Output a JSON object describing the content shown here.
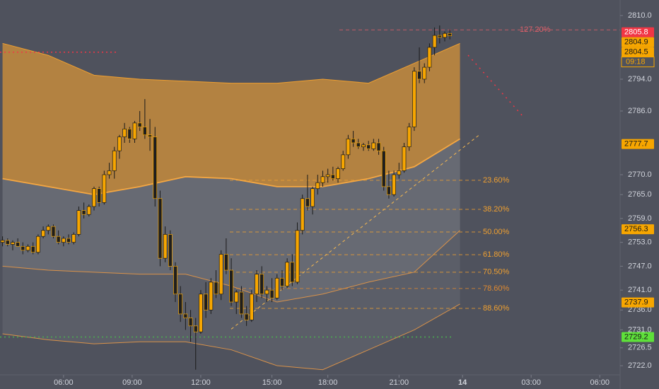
{
  "chart_data": {
    "type": "candlestick",
    "xlim": [
      -0.5,
      121.5
    ],
    "ylim": [
      2719.7,
      2813.9
    ],
    "xticks": [
      {
        "value": 12,
        "label": "06:00"
      },
      {
        "value": 25.5,
        "label": "09:00"
      },
      {
        "value": 39,
        "label": "12:00"
      },
      {
        "value": 53,
        "label": "15:00"
      },
      {
        "value": 64,
        "label": "18:00"
      },
      {
        "value": 78,
        "label": "21:00"
      },
      {
        "value": 90.5,
        "label": "14"
      },
      {
        "value": 104,
        "label": "03:00"
      },
      {
        "value": 117.5,
        "label": "06:00"
      }
    ],
    "yticks": [
      {
        "value": 2810,
        "label": "2810.0"
      },
      {
        "value": 2794,
        "label": "2794.0"
      },
      {
        "value": 2786,
        "label": "2786.0"
      },
      {
        "value": 2770,
        "label": "2770.0"
      },
      {
        "value": 2765,
        "label": "2765.0"
      },
      {
        "value": 2759,
        "label": "2759.0"
      },
      {
        "value": 2753,
        "label": "2753.0"
      },
      {
        "value": 2747,
        "label": "2747.0"
      },
      {
        "value": 2741,
        "label": "2741.0"
      },
      {
        "value": 2736,
        "label": "2736.0"
      },
      {
        "value": 2731,
        "label": "2731.0"
      },
      2726.5,
      {
        "value": 2722,
        "label": "2722.0"
      }
    ],
    "up_color": "#f7a600",
    "down_color": "#1e1e1e",
    "open": [
      2753,
      2753.5,
      2752.5,
      2753,
      2752,
      2751,
      2752,
      2750.5,
      2754.5,
      2756,
      2757,
      2754.5,
      2753,
      2754,
      2753,
      2755,
      2761,
      2760,
      2762,
      2766.5,
      2763,
      2770,
      2771,
      2776,
      2779.5,
      2781.5,
      2779,
      2783,
      2782,
      2780,
      2779.5,
      2764,
      2749,
      2755,
      2747,
      2740,
      2735,
      2734,
      2732,
      2730.5,
      2740,
      2736,
      2743,
      2740,
      2750,
      2746,
      2738,
      2740.5,
      2735,
      2733.5,
      2740,
      2745,
      2740,
      2741,
      2739,
      2744,
      2742,
      2748,
      2743,
      2756,
      2764,
      2762,
      2766.5,
      2768,
      2769.5,
      2770,
      2769,
      2771.5,
      2775,
      2779,
      2778,
      2777,
      2777.5,
      2776.5,
      2778,
      2776,
      2767,
      2765,
      2770,
      2771,
      2777,
      2782,
      2796,
      2794,
      2797,
      2802,
      2805,
      2804.5,
      2805.5
    ],
    "high": [
      2754.5,
      2754,
      2753.5,
      2754,
      2753,
      2752.5,
      2753,
      2755,
      2757,
      2757.5,
      2757.5,
      2756,
      2754.5,
      2755,
      2755.5,
      2762,
      2763,
      2762.5,
      2767,
      2767,
      2771,
      2773,
      2777,
      2780,
      2783,
      2782,
      2783.5,
      2786,
      2789,
      2784,
      2782,
      2766,
      2757,
      2756,
      2748,
      2742,
      2738,
      2736,
      2734,
      2741,
      2743,
      2744,
      2746,
      2751,
      2754,
      2749,
      2741,
      2742,
      2737,
      2741,
      2746,
      2747,
      2742,
      2744,
      2745,
      2746,
      2749,
      2750,
      2758,
      2765,
      2770,
      2767,
      2770,
      2771,
      2771.5,
      2772,
      2772,
      2776,
      2780,
      2781,
      2779,
      2778,
      2778.5,
      2779,
      2779,
      2777,
      2771,
      2771,
      2773,
      2778,
      2783,
      2797,
      2802,
      2798,
      2803,
      2807,
      2807.5,
      2806,
      2806.5
    ],
    "low": [
      2752,
      2752,
      2751,
      2752,
      2750,
      2750.5,
      2750,
      2750,
      2754,
      2755,
      2754,
      2752.5,
      2752,
      2752.5,
      2752.5,
      2754.5,
      2759,
      2759.5,
      2761,
      2762,
      2762.5,
      2769,
      2769,
      2774,
      2778,
      2778,
      2778,
      2781,
      2779,
      2776,
      2762,
      2747,
      2748,
      2746,
      2738,
      2733,
      2731,
      2728,
      2721,
      2730,
      2734,
      2735,
      2739,
      2738.5,
      2745,
      2737,
      2735,
      2734,
      2732,
      2733,
      2738,
      2739,
      2738,
      2738,
      2738.5,
      2741,
      2741.5,
      2742,
      2742.5,
      2755,
      2761,
      2760,
      2765,
      2767,
      2768,
      2768.5,
      2768,
      2771,
      2774,
      2777,
      2776.5,
      2776,
      2776,
      2776,
      2775,
      2766,
      2764,
      2764.5,
      2769,
      2770.5,
      2776,
      2781,
      2793,
      2793,
      2796,
      2800,
      2803,
      2803.5,
      2804
    ],
    "close": [
      2753.5,
      2752.5,
      2753,
      2752,
      2751,
      2752,
      2750.5,
      2754.5,
      2756,
      2757,
      2754.5,
      2753,
      2754,
      2753,
      2755,
      2761,
      2760,
      2762,
      2766.5,
      2763,
      2770,
      2771,
      2776,
      2779.5,
      2781.5,
      2779,
      2783,
      2782,
      2780,
      2779.5,
      2764,
      2749,
      2755,
      2747,
      2740,
      2735,
      2734,
      2732,
      2730.5,
      2740,
      2736,
      2743,
      2740,
      2750,
      2746,
      2738,
      2740.5,
      2735,
      2733.5,
      2740,
      2745,
      2740,
      2741,
      2739,
      2744,
      2742,
      2748,
      2743,
      2756,
      2764,
      2762,
      2766.5,
      2768,
      2769.5,
      2770,
      2769,
      2771.5,
      2775,
      2779,
      2778,
      2777,
      2777.5,
      2776.5,
      2778,
      2776,
      2767,
      2765,
      2770,
      2771,
      2777,
      2782,
      2796,
      2794,
      2797,
      2802,
      2805,
      2804.5,
      2805.5,
      2804.9
    ],
    "band_x": [
      0,
      9,
      18,
      27,
      36,
      45,
      54,
      63,
      72,
      81,
      90
    ],
    "bands": [
      {
        "color": "#f0a030",
        "values": [
          2803,
          2800,
          2795,
          2794,
          2793.5,
          2793,
          2793,
          2794,
          2793,
          2798,
          2803
        ]
      },
      {
        "color": "#f5a742",
        "values": [
          2769,
          2767,
          2765,
          2767,
          2769.5,
          2769,
          2767,
          2767,
          2769,
          2772,
          2779
        ]
      },
      {
        "color": "#d9924a",
        "values": [
          2747,
          2746,
          2745.5,
          2745,
          2745,
          2742,
          2738,
          2740,
          2743,
          2745.5,
          2756
        ]
      },
      {
        "color": "#d9924a",
        "values": [
          2730,
          2728.5,
          2727.5,
          2728,
          2728,
          2726,
          2722,
          2721,
          2726,
          2731,
          2737.5
        ]
      }
    ],
    "fib_levels": [
      {
        "label": "127.20%",
        "price": 2806.4,
        "color": "#e0606a"
      },
      {
        "label": "23.60%",
        "price": 2768.6,
        "color": "#f0a030"
      },
      {
        "label": "38.20%",
        "price": 2761.3,
        "color": "#f0a030"
      },
      {
        "label": "50.00%",
        "price": 2755.6,
        "color": "#f0a030"
      },
      {
        "label": "61.80%",
        "price": 2749.9,
        "color": "#f0a030"
      },
      {
        "label": "70.50%",
        "price": 2745.5,
        "color": "#f0a030"
      },
      {
        "label": "78.60%",
        "price": 2741.4,
        "color": "#e08a30"
      },
      {
        "label": "88.60%",
        "price": 2736.4,
        "color": "#f0a030"
      }
    ],
    "trendline": {
      "x": [
        45,
        94
      ],
      "y": [
        2731.2,
        2780.2
      ],
      "color": "#f5b850"
    },
    "hlines": [
      {
        "price": 2800.8,
        "color": "#f23645"
      },
      {
        "price": 2729.2,
        "color": "#4caf50"
      }
    ],
    "price_labels": [
      {
        "value": 2805.8,
        "bg": "#f23645"
      },
      {
        "value": 2804.9,
        "bg": "#f7a600"
      },
      {
        "value": 2804.5,
        "bg": "#f7a600"
      },
      {
        "value": 2777.7,
        "bg": "#f7a600"
      },
      {
        "value": 2756.3,
        "bg": "#f7a600"
      },
      {
        "value": 2737.9,
        "bg": "#f7a600"
      },
      {
        "value": 2729.2,
        "bg": "#5ee03a"
      }
    ],
    "countdown": "09:18"
  }
}
